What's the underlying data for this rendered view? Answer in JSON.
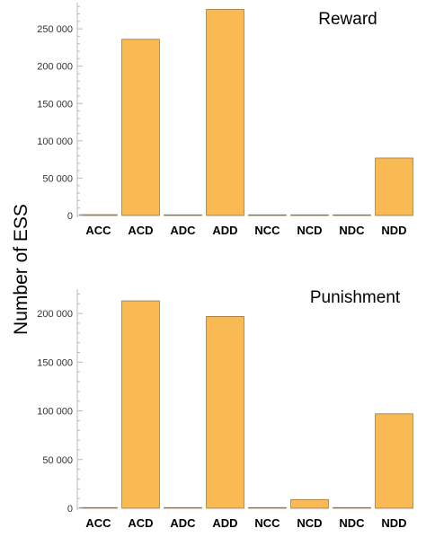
{
  "figure": {
    "ylabel": "Number of ESS",
    "bar_color": "#F9B953"
  },
  "chart_data": [
    {
      "type": "bar",
      "title": "Reward",
      "categories": [
        "ACC",
        "ACD",
        "ADC",
        "ADD",
        "NCC",
        "NCD",
        "NDC",
        "NDD"
      ],
      "values": [
        1200,
        236000,
        800,
        276000,
        600,
        700,
        900,
        77000
      ],
      "ylim": [
        0,
        285000
      ],
      "yticks": [
        0,
        50000,
        100000,
        150000,
        200000,
        250000
      ],
      "ytick_labels": [
        "0",
        "50 000",
        "100 000",
        "150 000",
        "200 000",
        "250 000"
      ],
      "xlabel": "",
      "ylabel": "Number of ESS",
      "grid": false
    },
    {
      "type": "bar",
      "title": "Punishment",
      "categories": [
        "ACC",
        "ACD",
        "ADC",
        "ADD",
        "NCC",
        "NCD",
        "NDC",
        "NDD"
      ],
      "values": [
        600,
        213000,
        400,
        197000,
        500,
        9000,
        400,
        97000
      ],
      "ylim": [
        0,
        225000
      ],
      "yticks": [
        0,
        50000,
        100000,
        150000,
        200000
      ],
      "ytick_labels": [
        "0",
        "50 000",
        "100 000",
        "150 000",
        "200 000"
      ],
      "xlabel": "",
      "ylabel": "Number of ESS",
      "grid": false
    }
  ]
}
